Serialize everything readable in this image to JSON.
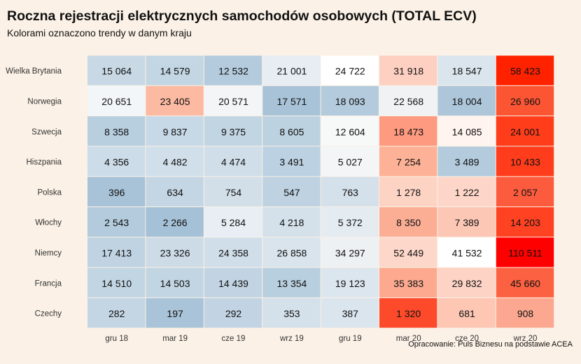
{
  "title": "Roczna rejestracji elektrycznych samochodów osobowych (TOTAL ECV)",
  "subtitle": "Kolorami oznaczono trendy w danym kraju",
  "source": "Opracowanie: Puls Biznesu na podstawie ACEA",
  "chart_data": {
    "type": "heatmap",
    "columns": [
      "gru 18",
      "mar 19",
      "cze 19",
      "wrz 19",
      "gru 19",
      "mar 20",
      "cze 20",
      "wrz 20"
    ],
    "rows": [
      {
        "country": "Wielka Brytania",
        "values": [
          15064,
          14579,
          12532,
          21001,
          24722,
          31918,
          18547,
          58423
        ],
        "labels": [
          "15 064",
          "14 579",
          "12 532",
          "21 001",
          "24 722",
          "31 918",
          "18 547",
          "58 423"
        ]
      },
      {
        "country": "Norwegia",
        "values": [
          20651,
          23405,
          20571,
          17571,
          18093,
          22568,
          18004,
          26960
        ],
        "labels": [
          "20 651",
          "23 405",
          "20 571",
          "17 571",
          "18 093",
          "22 568",
          "18 004",
          "26 960"
        ]
      },
      {
        "country": "Szwecja",
        "values": [
          8358,
          9837,
          9375,
          8605,
          12604,
          18473,
          14085,
          24001
        ],
        "labels": [
          "8 358",
          "9 837",
          "9 375",
          "8 605",
          "12 604",
          "18 473",
          "14 085",
          "24 001"
        ]
      },
      {
        "country": "Hiszpania",
        "values": [
          4356,
          4482,
          4474,
          3491,
          5027,
          7254,
          3489,
          10433
        ],
        "labels": [
          "4 356",
          "4 482",
          "4 474",
          "3 491",
          "5 027",
          "7 254",
          "3 489",
          "10 433"
        ]
      },
      {
        "country": "Polska",
        "values": [
          396,
          634,
          754,
          547,
          763,
          1278,
          1222,
          2057
        ],
        "labels": [
          "396",
          "634",
          "754",
          "547",
          "763",
          "1 278",
          "1 222",
          "2 057"
        ]
      },
      {
        "country": "Włochy",
        "values": [
          2543,
          2266,
          5284,
          4218,
          5372,
          8350,
          7389,
          14203
        ],
        "labels": [
          "2 543",
          "2 266",
          "5 284",
          "4 218",
          "5 372",
          "8 350",
          "7 389",
          "14 203"
        ]
      },
      {
        "country": "Niemcy",
        "values": [
          17413,
          23326,
          24358,
          26858,
          34297,
          52449,
          41532,
          110511
        ],
        "labels": [
          "17 413",
          "23 326",
          "24 358",
          "26 858",
          "34 297",
          "52 449",
          "41 532",
          "110 511"
        ]
      },
      {
        "country": "Francja",
        "values": [
          14510,
          14503,
          14439,
          13354,
          19123,
          35383,
          29832,
          45660
        ],
        "labels": [
          "14 510",
          "14 503",
          "14 439",
          "13 354",
          "19 123",
          "35 383",
          "29 832",
          "45 660"
        ]
      },
      {
        "country": "Czechy",
        "values": [
          282,
          197,
          292,
          353,
          387,
          1320,
          681,
          908
        ],
        "labels": [
          "282",
          "197",
          "292",
          "353",
          "387",
          "1 320",
          "681",
          "908"
        ]
      }
    ],
    "colors": {
      "cells": [
        [
          "#c8d9e5",
          "#c3d6e3",
          "#b3cbdd",
          "#e7edf3",
          "#ffffff",
          "#fdd0c2",
          "#dae5ee",
          "#ff2200"
        ],
        [
          "#f2f6f8",
          "#fdbaa3",
          "#f3f5f7",
          "#a8c3d8",
          "#b3cbdc",
          "#f0f2f4",
          "#adc6d9",
          "#fc5533"
        ],
        [
          "#b8cfe0",
          "#c7d8e6",
          "#c2d5e3",
          "#bdd2e1",
          "#f7f8f8",
          "#fd9a7f",
          "#fff4ef",
          "#ff3d1b"
        ],
        [
          "#ccdce8",
          "#d0dfe9",
          "#d0dee9",
          "#bcd1e1",
          "#f4f5f7",
          "#fdb297",
          "#b3cbdc",
          "#ff3c1b"
        ],
        [
          "#a8c3d8",
          "#c4d6e4",
          "#d2dfe9",
          "#bed2e1",
          "#d4e0ea",
          "#fdd3c4",
          "#fdd6c9",
          "#fd5b3d"
        ],
        [
          "#b3cbdc",
          "#a5c1d7",
          "#e8eef3",
          "#d4e1ea",
          "#e4ebf1",
          "#fcae95",
          "#fcc7b5",
          "#ff4222"
        ],
        [
          "#bfd3e2",
          "#cddbe7",
          "#d0dee9",
          "#d9e4ed",
          "#edf1f4",
          "#fdd7c9",
          "#ffffff",
          "#ff0000"
        ],
        [
          "#c2d5e3",
          "#c2d5e3",
          "#c2d4e3",
          "#b8cfdf",
          "#dce6ee",
          "#fca990",
          "#fdd3c5",
          "#fc6142"
        ],
        [
          "#c4d6e4",
          "#a9c4d8",
          "#c2d4e3",
          "#d4e0ea",
          "#dbe5ee",
          "#fd4a2a",
          "#fec7b4",
          "#fca891"
        ]
      ]
    }
  }
}
